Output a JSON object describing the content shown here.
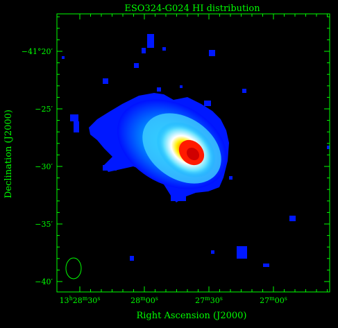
{
  "title": "ESO324-G024  HI distribution",
  "axes": {
    "xlabel": "Right Ascension (J2000)",
    "ylabel": "Declination (J2000)",
    "y_ticks": [
      {
        "label": "−41°20′"
      },
      {
        "label": "−25′"
      },
      {
        "label": "−30′"
      },
      {
        "label": "−35′"
      },
      {
        "label": "−40′"
      }
    ],
    "x_ticks": [
      {
        "h": "13",
        "hs": "h",
        "m": "28",
        "ms": "m",
        "s": "30",
        "ss": "s"
      },
      {
        "h": "",
        "hs": "",
        "m": "28",
        "ms": "m",
        "s": "00",
        "ss": "s"
      },
      {
        "h": "",
        "hs": "",
        "m": "27",
        "ms": "m",
        "s": "30",
        "ss": "s"
      },
      {
        "h": "",
        "hs": "",
        "m": "27",
        "ms": "m",
        "s": "00",
        "ss": "s"
      }
    ]
  },
  "colors": {
    "axis": "#00ff00",
    "background": "#000000",
    "colormap": [
      "#0018ff",
      "#00a0ff",
      "#ffffff",
      "#ffe020",
      "#ff2000"
    ],
    "beam": "#00ff00"
  },
  "image": {
    "kind": "radio intensity map",
    "colormap_name": "blue-cyan-white-yellow-red"
  }
}
